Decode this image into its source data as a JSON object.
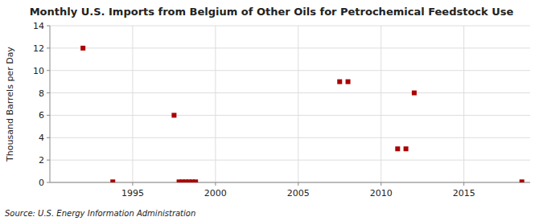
{
  "chart_data": {
    "type": "scatter",
    "title": "Monthly U.S. Imports from Belgium of Other Oils for Petrochemical Feedstock Use",
    "y_label": "Thousand Barrels per Day",
    "annotation": "Source: U.S. Energy Information Administration",
    "x": [
      1992.0,
      1993.8,
      1997.5,
      1997.8,
      1998.0,
      1998.2,
      1998.4,
      1998.6,
      1998.8,
      2007.5,
      2008.0,
      2011.0,
      2011.5,
      2012.0,
      2018.5
    ],
    "values": [
      12.0,
      0.05,
      6.0,
      0.05,
      0.05,
      0.05,
      0.05,
      0.05,
      0.05,
      9.0,
      9.0,
      3.0,
      3.0,
      8.0,
      0.05
    ],
    "xlim": [
      1990,
      2019
    ],
    "ylim": [
      0,
      14
    ],
    "xticks": [
      1995,
      2000,
      2005,
      2010,
      2015
    ],
    "yticks": [
      0,
      2,
      4,
      6,
      8,
      10,
      12,
      14
    ],
    "grid": true,
    "color": "#aa0000",
    "marker": "square"
  }
}
